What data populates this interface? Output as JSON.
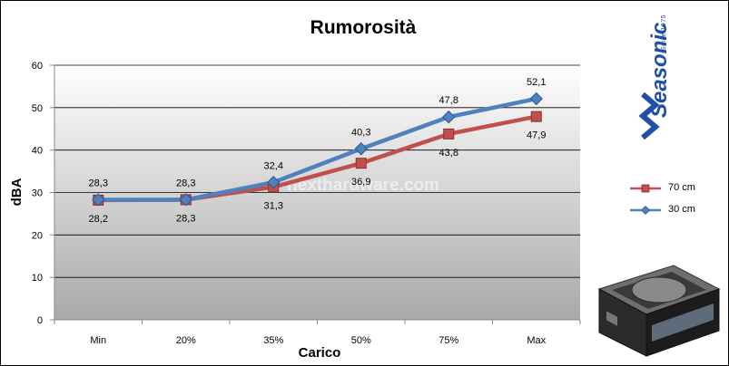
{
  "chart_data": {
    "type": "line",
    "title": "Rumorosità",
    "xlabel": "Carico",
    "ylabel": "dBA",
    "categories": [
      "Min",
      "20%",
      "35%",
      "50%",
      "75%",
      "Max"
    ],
    "ylim": [
      0,
      60
    ],
    "yticks": [
      0,
      10,
      20,
      30,
      40,
      50,
      60
    ],
    "grid": true,
    "legend_position": "right",
    "series": [
      {
        "name": "70 cm",
        "color": "#c0504d",
        "marker": "square",
        "values": [
          28.2,
          28.3,
          31.3,
          36.9,
          43.8,
          47.9
        ],
        "labels": [
          "28,2",
          "28,3",
          "31,3",
          "36,9",
          "43,8",
          "47,9"
        ]
      },
      {
        "name": "30 cm",
        "color": "#4f81bd",
        "marker": "diamond",
        "values": [
          28.3,
          28.3,
          32.4,
          40.3,
          47.8,
          52.1
        ],
        "labels": [
          "28,3",
          "28,3",
          "32,4",
          "40,3",
          "47,8",
          "52,1"
        ]
      }
    ]
  },
  "watermark": "nexthardware.com",
  "brand": {
    "name": "Seasonic",
    "tagline": "Since 1975"
  }
}
